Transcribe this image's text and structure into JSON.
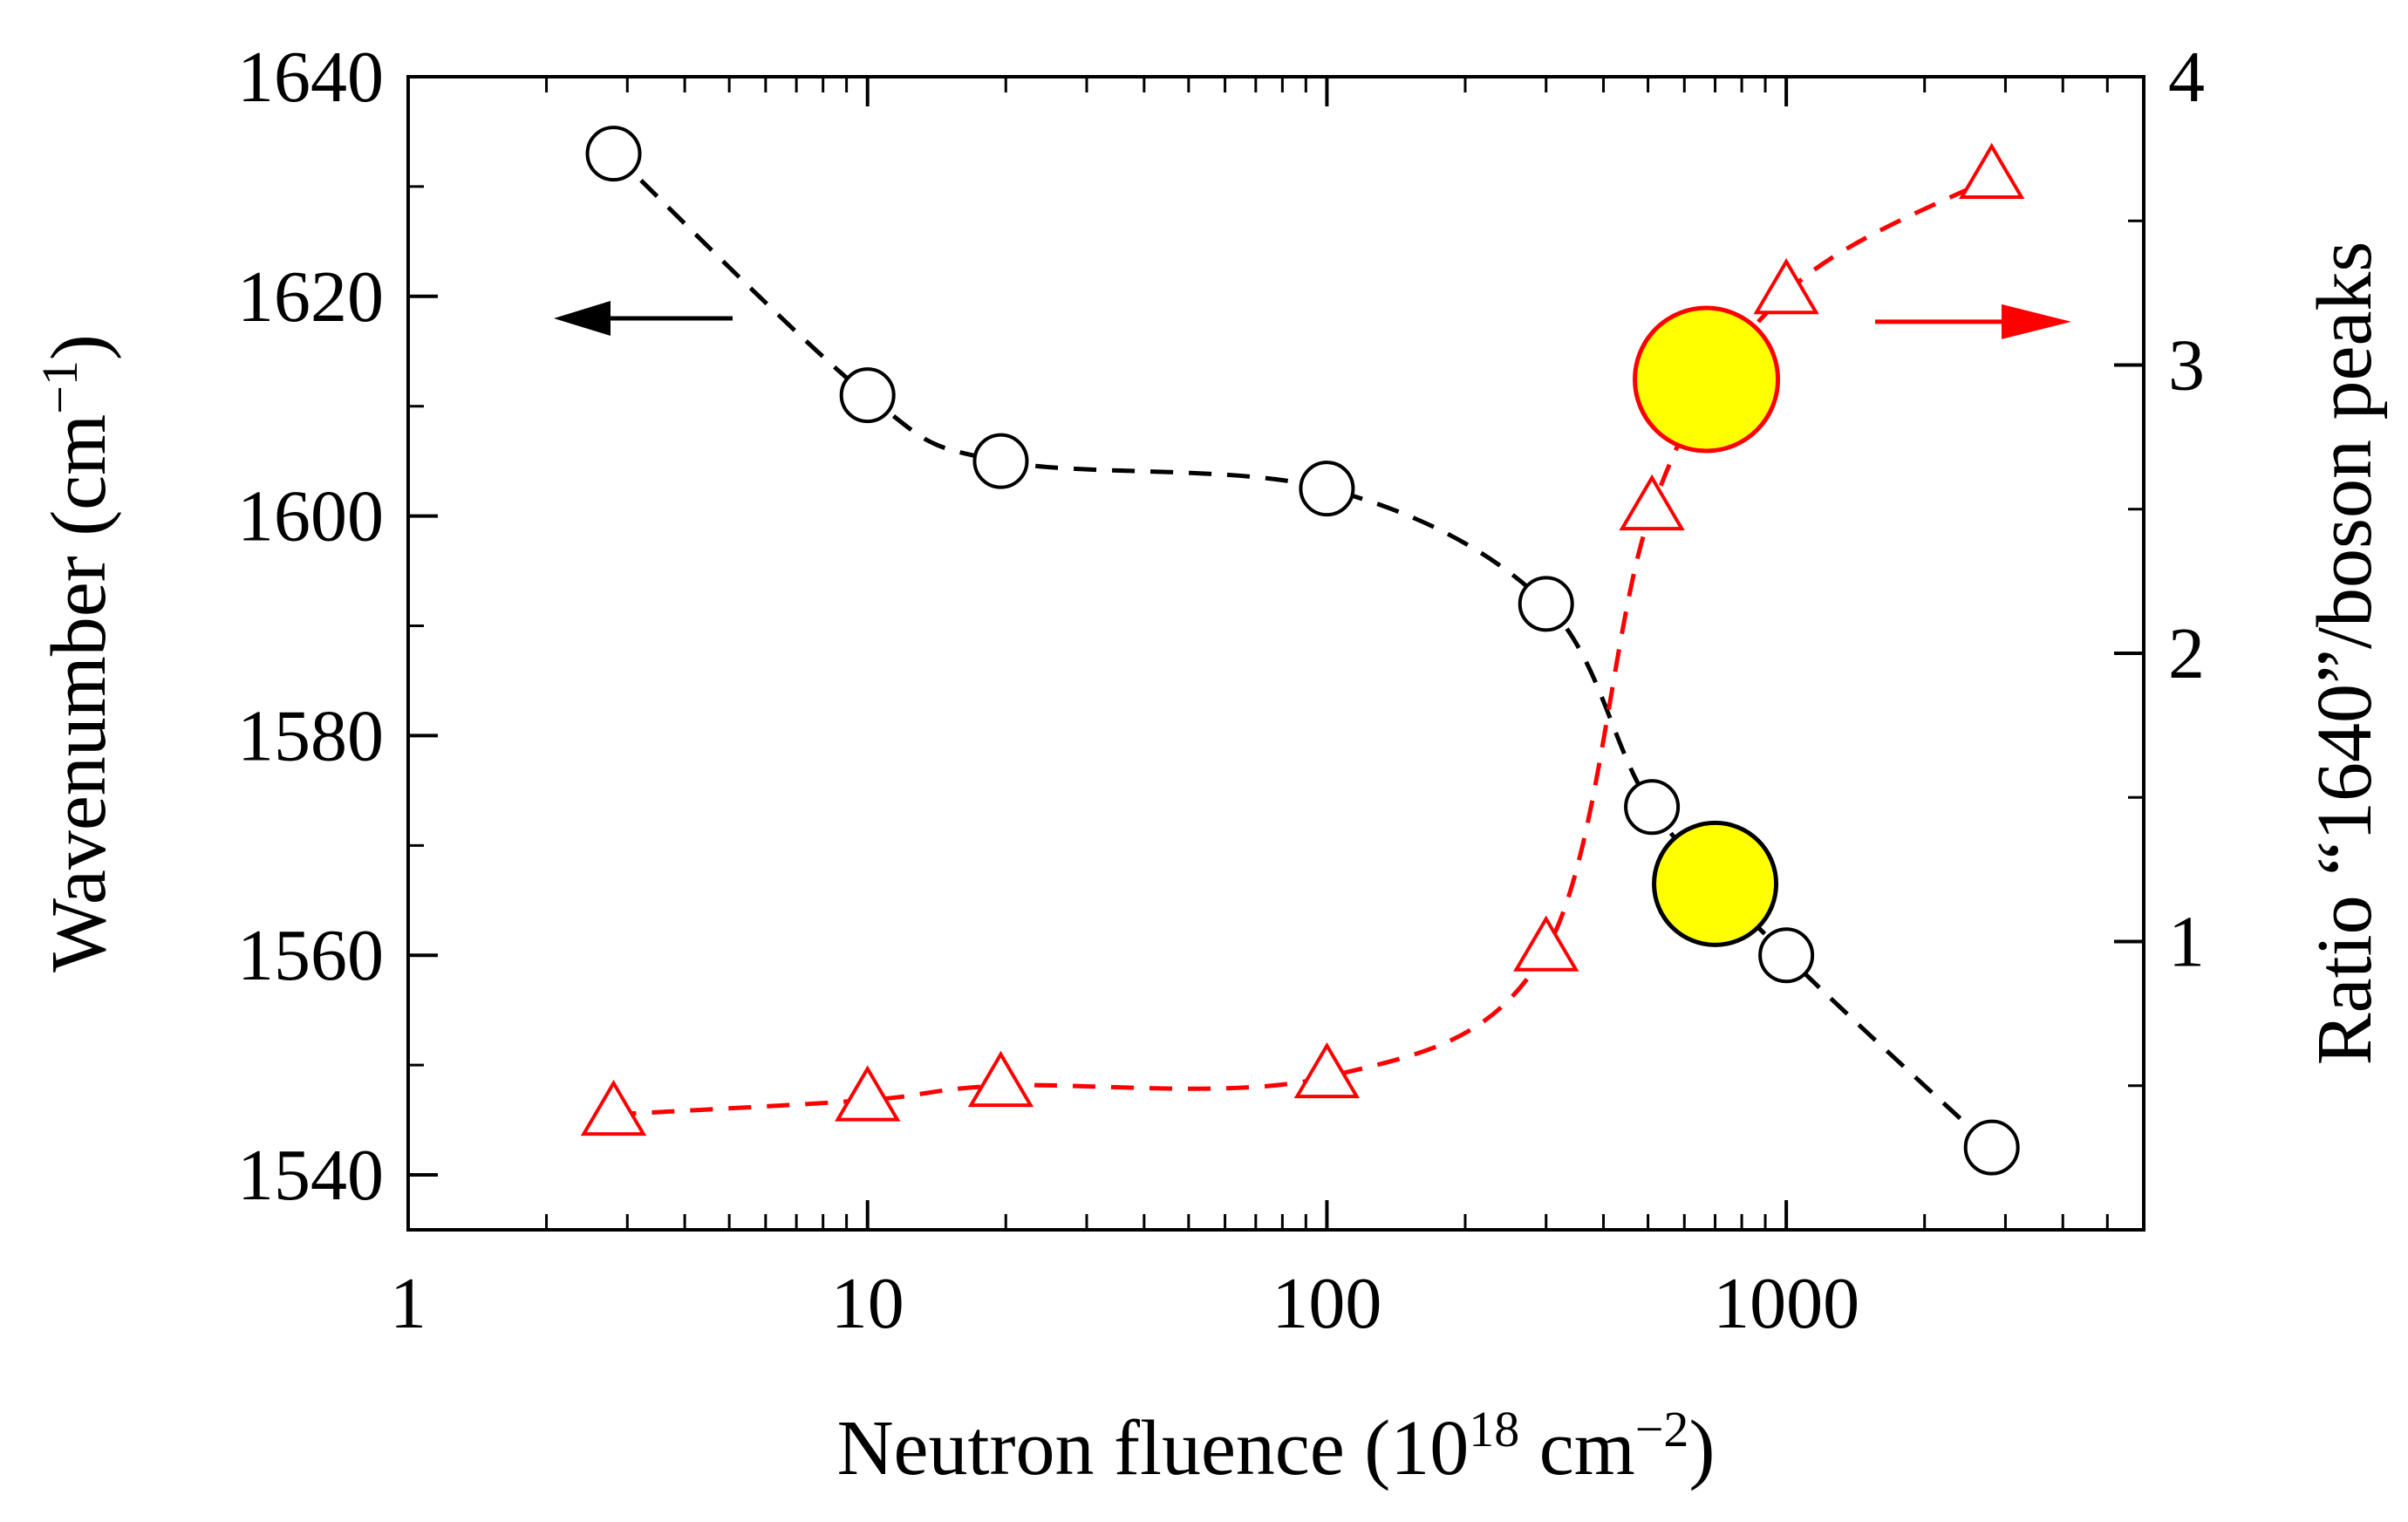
{
  "chart_data": {
    "type": "scatter",
    "title": "",
    "xlabel": {
      "base": "Neutron fluence (10",
      "exp1": "18",
      "mid": " cm",
      "exp2": "−2",
      "end": ")"
    },
    "ylabel_left": {
      "base": "Wavenumber (cm",
      "exp": "−1",
      "end": ")"
    },
    "ylabel_right": "Ratio “1640”/boson peaks",
    "xscale": "log",
    "xlim": [
      1,
      6000
    ],
    "ylim_left": [
      1535,
      1640
    ],
    "ylim_right": [
      0,
      4
    ],
    "x_ticks": [
      {
        "value": 1,
        "label": "1"
      },
      {
        "value": 10,
        "label": "10"
      },
      {
        "value": 100,
        "label": "100"
      },
      {
        "value": 1000,
        "label": "1000"
      }
    ],
    "y_left_ticks": [
      {
        "value": 1540,
        "label": "1540"
      },
      {
        "value": 1560,
        "label": "1560"
      },
      {
        "value": 1580,
        "label": "1580"
      },
      {
        "value": 1600,
        "label": "1600"
      },
      {
        "value": 1620,
        "label": "1620"
      },
      {
        "value": 1640,
        "label": "1640"
      }
    ],
    "y_right_ticks": [
      {
        "value": 1,
        "label": "1"
      },
      {
        "value": 2,
        "label": "2"
      },
      {
        "value": 3,
        "label": "3"
      },
      {
        "value": 4,
        "label": "4"
      }
    ],
    "series": [
      {
        "name": "Wavenumber",
        "axis": "left",
        "marker": "open-circle",
        "color": "#000000",
        "x": [
          2.8,
          10,
          19.5,
          100,
          300,
          510,
          1000,
          2800
        ],
        "y": [
          1633,
          1611,
          1605,
          1602.5,
          1592,
          1573.5,
          1560,
          1542.5
        ]
      },
      {
        "name": "Ratio 1640/boson",
        "axis": "right",
        "marker": "open-triangle",
        "color": "#ff0000",
        "x": [
          2.8,
          10,
          19.5,
          100,
          300,
          510,
          1000,
          2800
        ],
        "y": [
          0.4,
          0.45,
          0.5,
          0.53,
          0.97,
          2.5,
          3.25,
          3.65
        ]
      }
    ],
    "highlights": [
      {
        "name": "black-highlight",
        "axis": "left",
        "x": 700,
        "y": 1566.5,
        "fill": "#ffff00",
        "stroke": "#000000"
      },
      {
        "name": "red-highlight",
        "axis": "right",
        "x": 670,
        "y": 2.95,
        "fill": "#ffff00",
        "stroke": "#ff0000"
      }
    ],
    "annotations": [
      {
        "name": "left-axis-arrow",
        "direction": "left",
        "color": "#000000",
        "axis": "left",
        "y": 1618
      },
      {
        "name": "right-axis-arrow",
        "direction": "right",
        "color": "#ff0000",
        "axis": "right",
        "y": 3.15
      }
    ]
  }
}
